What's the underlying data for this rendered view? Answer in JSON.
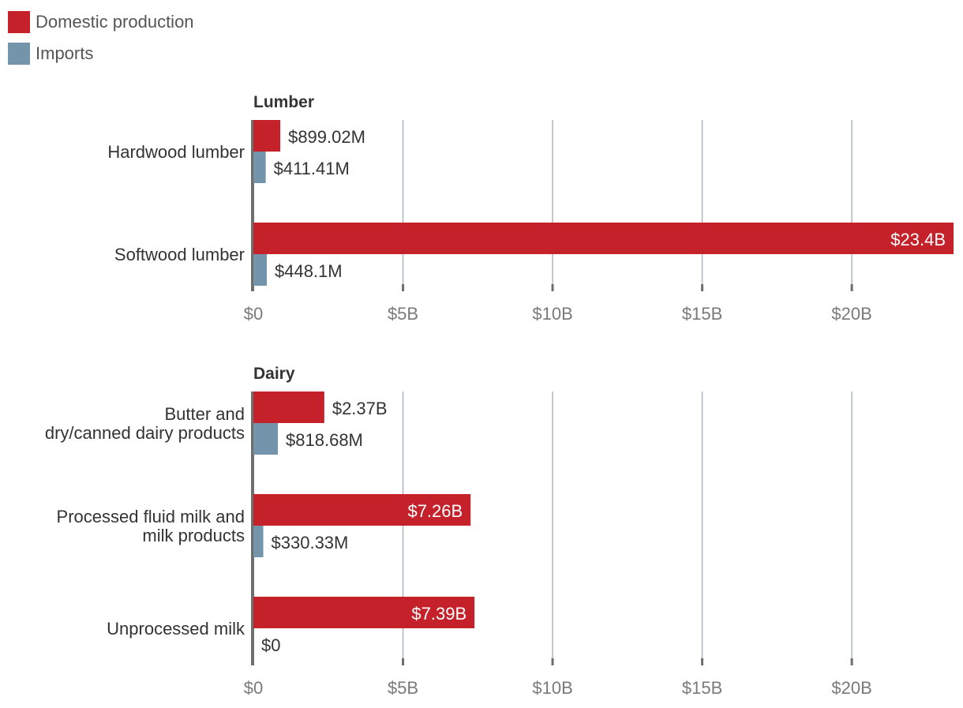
{
  "colors": {
    "domestic": "#c4212a",
    "imports": "#7394ab",
    "gridline": "#aab6c0",
    "axis": "#6e6e6e",
    "tick_text": "#7a7a7a",
    "label_text": "#333333",
    "inside_label": "#ffffff"
  },
  "legend": {
    "items": [
      {
        "key": "domestic",
        "label": "Domestic production"
      },
      {
        "key": "imports",
        "label": "Imports"
      }
    ]
  },
  "chart_data": [
    {
      "type": "bar",
      "orientation": "horizontal",
      "title": "Lumber",
      "categories": [
        [
          "Hardwood lumber"
        ],
        [
          "Softwood lumber"
        ]
      ],
      "series": [
        {
          "name": "Domestic production",
          "key": "domestic",
          "values": [
            0.89902,
            23.4
          ],
          "labels": [
            "$899.02M",
            "$23.4B"
          ]
        },
        {
          "name": "Imports",
          "key": "imports",
          "values": [
            0.41141,
            0.4481
          ],
          "labels": [
            "$411.41M",
            "$448.1M"
          ]
        }
      ],
      "xlim": [
        0,
        23.4
      ],
      "xticks": [
        0,
        5,
        10,
        15,
        20
      ],
      "xtick_labels": [
        "$0",
        "$5B",
        "$10B",
        "$15B",
        "$20B"
      ],
      "xunit": "billions of dollars",
      "grid": true
    },
    {
      "type": "bar",
      "orientation": "horizontal",
      "title": "Dairy",
      "categories": [
        [
          "Butter and",
          "dry/canned dairy products"
        ],
        [
          "Processed fluid milk and",
          "milk products"
        ],
        [
          "Unprocessed milk"
        ]
      ],
      "series": [
        {
          "name": "Domestic production",
          "key": "domestic",
          "values": [
            2.37,
            7.26,
            7.39
          ],
          "labels": [
            "$2.37B",
            "$7.26B",
            "$7.39B"
          ]
        },
        {
          "name": "Imports",
          "key": "imports",
          "values": [
            0.81868,
            0.33033,
            0
          ],
          "labels": [
            "$818.68M",
            "$330.33M",
            "$0"
          ]
        }
      ],
      "xlim": [
        0,
        23.4
      ],
      "xticks": [
        0,
        5,
        10,
        15,
        20
      ],
      "xtick_labels": [
        "$0",
        "$5B",
        "$10B",
        "$15B",
        "$20B"
      ],
      "xunit": "billions of dollars",
      "grid": true
    }
  ]
}
